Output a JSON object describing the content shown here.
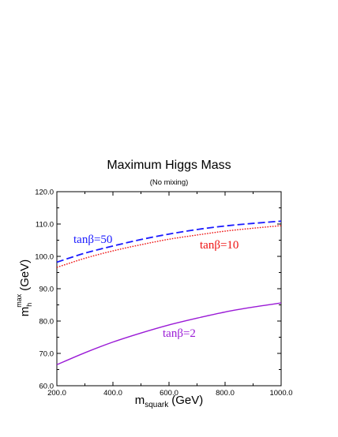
{
  "chart_data": {
    "type": "line",
    "title": "Maximum Higgs Mass",
    "subtitle": "(No mixing)",
    "xlabel": {
      "main": "m",
      "sub": "squark",
      "unit": "(GeV)"
    },
    "ylabel": {
      "main": "m",
      "sub": "h",
      "sup": "max",
      "unit": "(GeV)"
    },
    "xlim": [
      200,
      1000
    ],
    "ylim": [
      60,
      120
    ],
    "xticks": [
      200,
      400,
      600,
      800,
      1000
    ],
    "xtick_labels": [
      "200.0",
      "400.0",
      "600.0",
      "800.0",
      "1000.0"
    ],
    "yticks": [
      60,
      70,
      80,
      90,
      100,
      110,
      120
    ],
    "ytick_labels": [
      "60.0",
      "70.0",
      "80.0",
      "90.0",
      "100.0",
      "110.0",
      "120.0"
    ],
    "grid": false,
    "series": [
      {
        "name": "tanβ=50",
        "color": "#1a1aff",
        "dash": "dashed",
        "x": [
          200,
          300,
          400,
          500,
          600,
          700,
          800,
          900,
          1000
        ],
        "y": [
          98.2,
          101.0,
          103.2,
          105.2,
          106.9,
          108.3,
          109.4,
          110.2,
          110.9
        ]
      },
      {
        "name": "tanβ=10",
        "color": "#ee1111",
        "dash": "dotted",
        "x": [
          200,
          300,
          400,
          500,
          600,
          700,
          800,
          900,
          1000
        ],
        "y": [
          96.6,
          99.4,
          101.7,
          103.6,
          105.3,
          106.6,
          107.8,
          108.7,
          109.5
        ]
      },
      {
        "name": "tanβ=2",
        "color": "#9a1ad6",
        "dash": "solid",
        "x": [
          200,
          300,
          400,
          500,
          600,
          700,
          800,
          900,
          1000
        ],
        "y": [
          66.5,
          70.2,
          73.5,
          76.3,
          78.8,
          80.9,
          82.8,
          84.3,
          85.6
        ]
      }
    ]
  }
}
